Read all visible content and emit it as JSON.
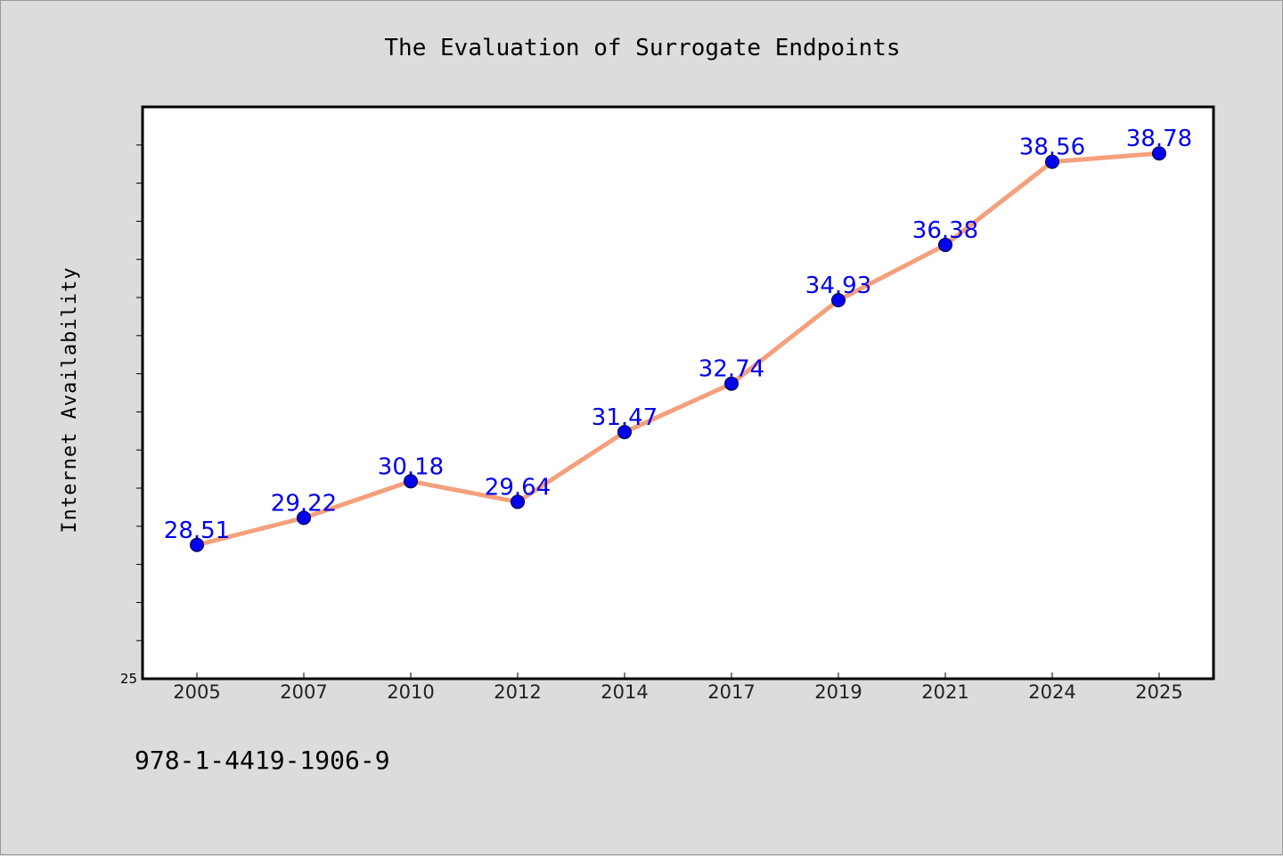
{
  "chart_data": {
    "type": "line",
    "title": "The Evaluation of Surrogate Endpoints",
    "ylabel": "Internet Availability",
    "xlabel": "",
    "categories": [
      "2005",
      "2007",
      "2010",
      "2012",
      "2014",
      "2017",
      "2019",
      "2021",
      "2024",
      "2025"
    ],
    "values": [
      28.51,
      29.22,
      30.18,
      29.64,
      31.47,
      32.74,
      34.93,
      36.38,
      38.56,
      38.78
    ],
    "value_labels": [
      "28.51",
      "29.22",
      "30.18",
      "29.64",
      "31.47",
      "32.74",
      "34.93",
      "36.38",
      "38.56",
      "38.78"
    ],
    "ylim": [
      25,
      40
    ],
    "y_tick_labels": [
      "25"
    ],
    "grid": false,
    "colors": {
      "line": "#f4a07c",
      "marker": "#0000ee",
      "data_label": "#0000ee",
      "plot_background": "#ffffff",
      "figure_background": "#dcdcdc"
    }
  },
  "footer": {
    "isbn": "978-1-4419-1906-9"
  }
}
